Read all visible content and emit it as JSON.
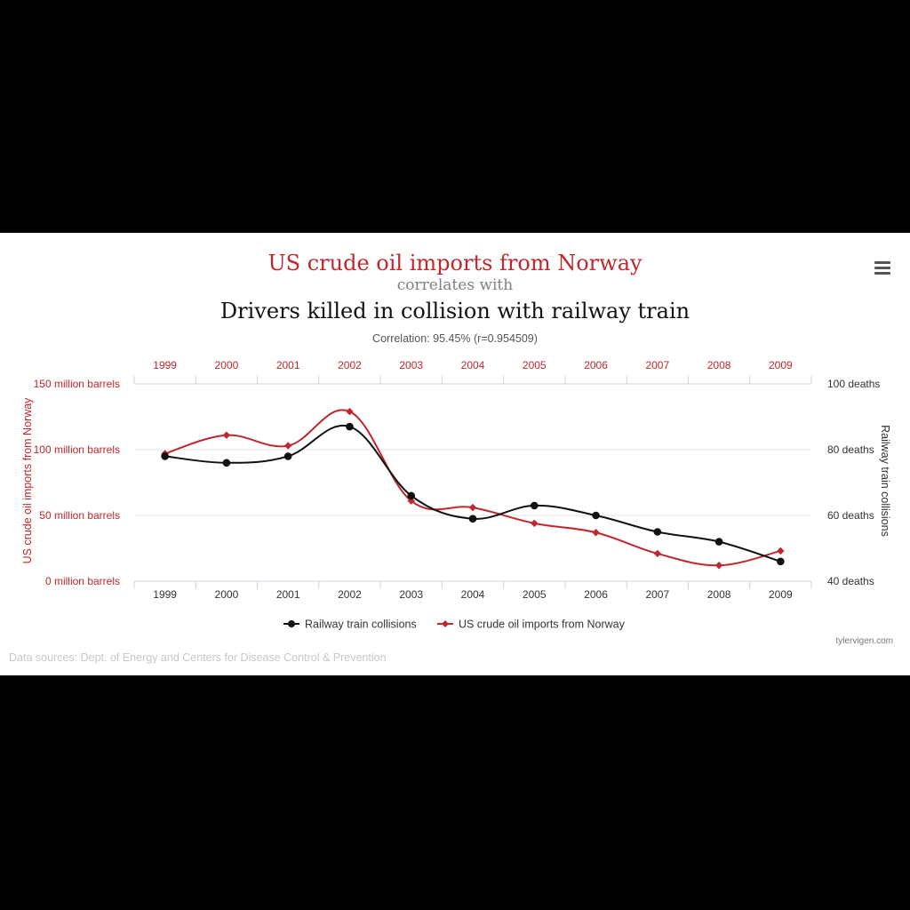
{
  "chart_data": {
    "type": "line",
    "title": "US crude oil imports from Norway",
    "subtitle_connector": "correlates with",
    "subtitle": "Drivers killed in collision with railway train",
    "correlation": "Correlation: 95.45% (r=0.954509)",
    "x": [
      "1999",
      "2000",
      "2001",
      "2002",
      "2003",
      "2004",
      "2005",
      "2006",
      "2007",
      "2008",
      "2009"
    ],
    "left_axis": {
      "label": "US crude oil imports from Norway",
      "ticks": [
        "0 million barrels",
        "50 million barrels",
        "100 million barrels",
        "150 million barrels"
      ],
      "range": [
        0,
        150
      ]
    },
    "right_axis": {
      "label": "Railway train collisions",
      "ticks": [
        "40 deaths",
        "60 deaths",
        "80 deaths",
        "100 deaths"
      ],
      "range": [
        40,
        100
      ]
    },
    "series": [
      {
        "name": "Railway train collisions",
        "axis": "right",
        "color": "#111111",
        "values": [
          78,
          76,
          78,
          87,
          66,
          59,
          63,
          60,
          55,
          52,
          46
        ]
      },
      {
        "name": "US crude oil imports from Norway",
        "axis": "left",
        "color": "#c1272d",
        "values": [
          97,
          111,
          103,
          129,
          61,
          56,
          44,
          37,
          21,
          12,
          23
        ]
      }
    ],
    "legend_position": "bottom-center",
    "grid": true
  },
  "footer": {
    "credit": "tylervigen.com",
    "sources": "Data sources: Dept. of Energy and Centers for Disease Control & Prevention"
  },
  "menu_icon": "hamburger-menu-icon",
  "colors": {
    "accent": "#c1272d",
    "dark": "#111111",
    "grid": "#dde4ec",
    "axis": "#c9d4e2"
  }
}
